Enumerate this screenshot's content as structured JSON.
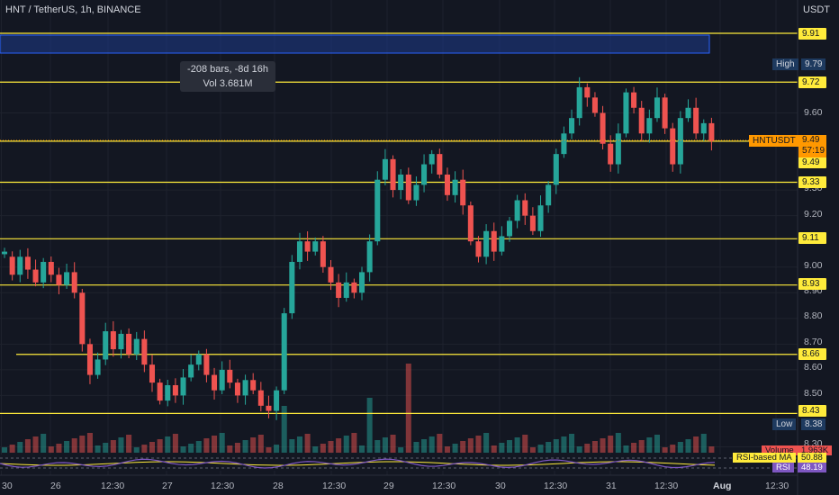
{
  "header": {
    "symbol": "HNT / TetherUS, 1h, BINANCE",
    "currency": "USDT"
  },
  "tooltip": {
    "line1": "-208 bars, -8d 16h",
    "line2": "Vol 3.681M"
  },
  "levels": [
    "9.91",
    "9.72",
    "9.49",
    "9.33",
    "9.11",
    "8.93",
    "8.66",
    "8.43"
  ],
  "price_axis": [
    "9.60",
    "9.30",
    "9.20",
    "9.00",
    "8.90",
    "8.80",
    "8.70",
    "8.60",
    "8.50",
    "8.30"
  ],
  "time_axis": [
    "30",
    "26",
    "12:30",
    "27",
    "12:30",
    "28",
    "12:30",
    "29",
    "12:30",
    "30",
    "12:30",
    "31",
    "12:30",
    "Aug",
    "12:30"
  ],
  "high": {
    "label": "High",
    "value": "9.79"
  },
  "low": {
    "label": "Low",
    "value": "8.38"
  },
  "ticker": {
    "name": "HNTUSDT",
    "price": "9.49",
    "countdown": "57:19"
  },
  "indicators": {
    "volume_label": "Volume",
    "volume_value": "1.963K",
    "rsi_ma_label": "RSI-based MA",
    "rsi_ma_value": "50.88",
    "rsi_label": "RSI",
    "rsi_value": "48.19"
  },
  "colors": {
    "background": "#131722",
    "up": "#26a69a",
    "down": "#ef5350",
    "level": "#ffeb3b",
    "current": "#ff9800"
  }
}
